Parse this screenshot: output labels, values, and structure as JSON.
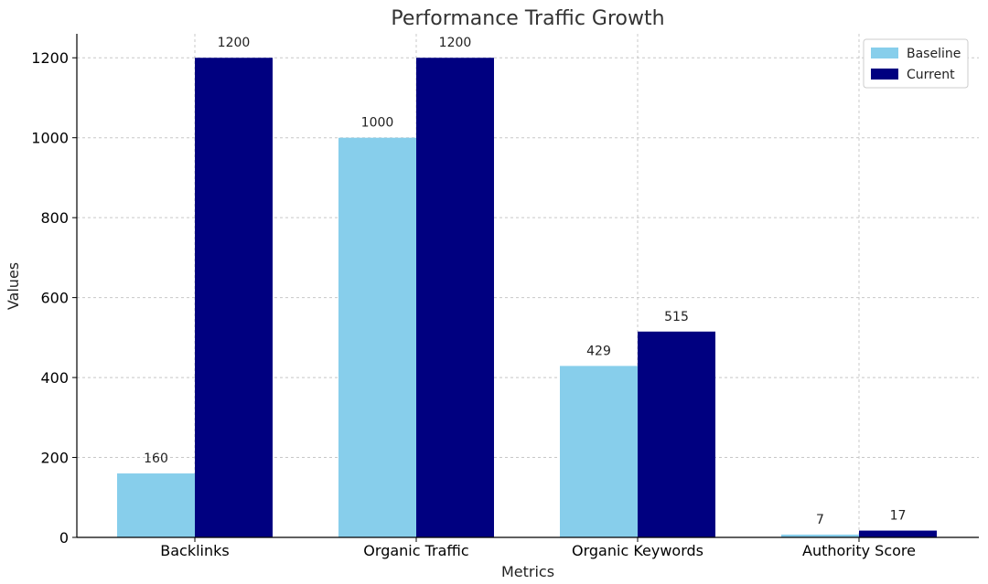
{
  "chart_data": {
    "type": "bar",
    "title": "Performance Traffic Growth",
    "xlabel": "Metrics",
    "ylabel": "Values",
    "categories": [
      "Backlinks",
      "Organic Traffic",
      "Organic Keywords",
      "Authority Score"
    ],
    "series": [
      {
        "name": "Baseline",
        "values": [
          160,
          1000,
          429,
          7
        ],
        "color": "#87ceeb"
      },
      {
        "name": "Current",
        "values": [
          1200,
          1200,
          515,
          17
        ],
        "color": "#000080"
      }
    ],
    "ylim": [
      0,
      1260
    ],
    "yticks": [
      0,
      200,
      400,
      600,
      800,
      1000,
      1200
    ],
    "grid": true,
    "legend_position": "top-right"
  }
}
